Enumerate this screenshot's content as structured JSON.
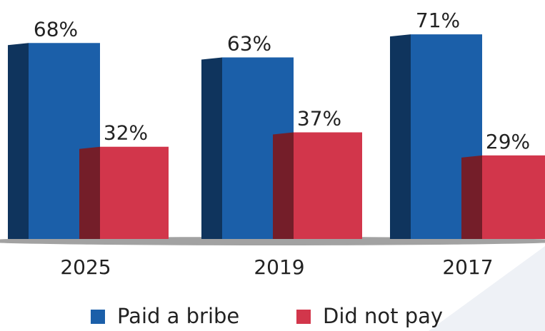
{
  "chart_data": {
    "type": "bar",
    "categories": [
      "2025",
      "2019",
      "2017"
    ],
    "series": [
      {
        "name": "Paid a bribe",
        "color": "#1b5fa9",
        "values": [
          68,
          63,
          71
        ],
        "value_labels": [
          "68%",
          "63%",
          "71%"
        ]
      },
      {
        "name": "Did not pay",
        "color": "#d2364b",
        "values": [
          32,
          37,
          29
        ],
        "value_labels": [
          "32%",
          "37%",
          "29%"
        ]
      }
    ],
    "legend": "bottom"
  }
}
